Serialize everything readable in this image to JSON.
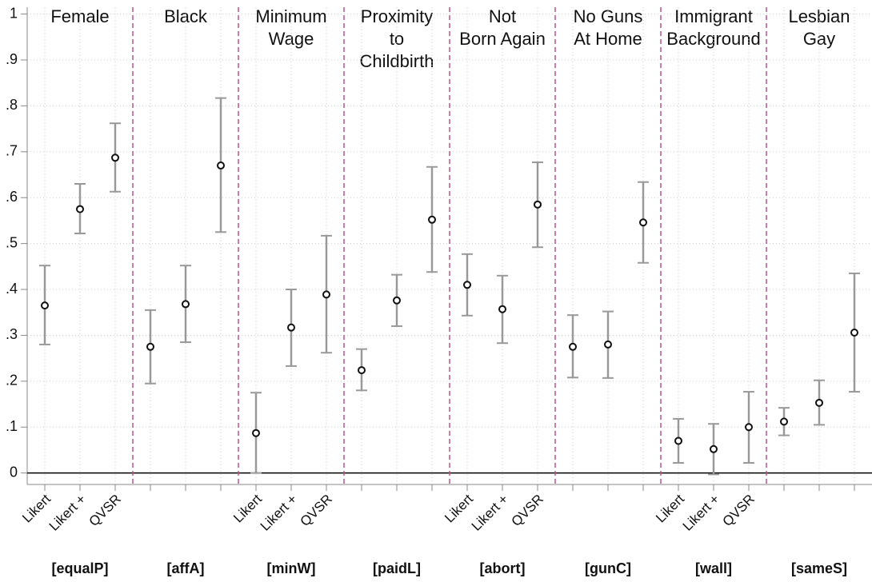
{
  "chart_data": {
    "type": "errorbar",
    "methods": [
      "Likert",
      "Likert +",
      "QVSR"
    ],
    "ylim": [
      -0.025,
      1.015
    ],
    "yticks": [
      0,
      {
        "value": 0.1,
        "label": ".1"
      },
      {
        "value": 0.2,
        "label": ".2"
      },
      {
        "value": 0.3,
        "label": ".3"
      },
      {
        "value": 0.4,
        "label": ".4"
      },
      {
        "value": 0.5,
        "label": ".5"
      },
      {
        "value": 0.6,
        "label": ".6"
      },
      {
        "value": 0.7,
        "label": ".7"
      },
      {
        "value": 0.8,
        "label": ".8"
      },
      {
        "value": 0.9,
        "label": ".9"
      },
      1
    ],
    "grid": true,
    "point_color": "#111111",
    "bar_color": "#999999",
    "divider_color": "#c0508a",
    "groups": [
      {
        "title": [
          "Female"
        ],
        "variable": "[equalP]",
        "show_method_labels": true,
        "values": [
          0.365,
          0.575,
          0.687
        ],
        "lower": [
          0.28,
          0.522,
          0.613
        ],
        "upper": [
          0.452,
          0.63,
          0.762
        ]
      },
      {
        "title": [
          "Black"
        ],
        "variable": "[affA]",
        "show_method_labels": false,
        "values": [
          0.275,
          0.368,
          0.67
        ],
        "lower": [
          0.195,
          0.285,
          0.525
        ],
        "upper": [
          0.355,
          0.452,
          0.817
        ]
      },
      {
        "title": [
          "Minimum",
          "Wage"
        ],
        "variable": "[minW]",
        "show_method_labels": true,
        "values": [
          0.087,
          0.317,
          0.389
        ],
        "lower": [
          0,
          0.233,
          0.262
        ],
        "upper": [
          0.175,
          0.4,
          0.517
        ]
      },
      {
        "title": [
          "Proximity",
          "to",
          "Childbirth"
        ],
        "variable": "[paidL]",
        "show_method_labels": false,
        "values": [
          0.224,
          0.376,
          0.552
        ],
        "lower": [
          0.18,
          0.32,
          0.438
        ],
        "upper": [
          0.27,
          0.432,
          0.667
        ]
      },
      {
        "title": [
          "Not",
          "Born Again"
        ],
        "variable": "[abort]",
        "show_method_labels": true,
        "values": [
          0.41,
          0.357,
          0.585
        ],
        "lower": [
          0.343,
          0.283,
          0.492
        ],
        "upper": [
          0.477,
          0.43,
          0.677
        ]
      },
      {
        "title": [
          "No Guns",
          "At Home"
        ],
        "variable": "[gunC]",
        "show_method_labels": false,
        "values": [
          0.275,
          0.28,
          0.546
        ],
        "lower": [
          0.208,
          0.207,
          0.458
        ],
        "upper": [
          0.344,
          0.352,
          0.634
        ]
      },
      {
        "title": [
          "Immigrant",
          "Background"
        ],
        "variable": "[wall]",
        "show_method_labels": true,
        "values": [
          0.07,
          0.052,
          0.1
        ],
        "lower": [
          0.022,
          -0.003,
          0.022
        ],
        "upper": [
          0.118,
          0.107,
          0.177
        ]
      },
      {
        "title": [
          "Lesbian",
          "Gay"
        ],
        "variable": "[sameS]",
        "show_method_labels": false,
        "values": [
          0.112,
          0.153,
          0.306
        ],
        "lower": [
          0.082,
          0.105,
          0.177
        ],
        "upper": [
          0.142,
          0.202,
          0.435
        ]
      }
    ]
  }
}
